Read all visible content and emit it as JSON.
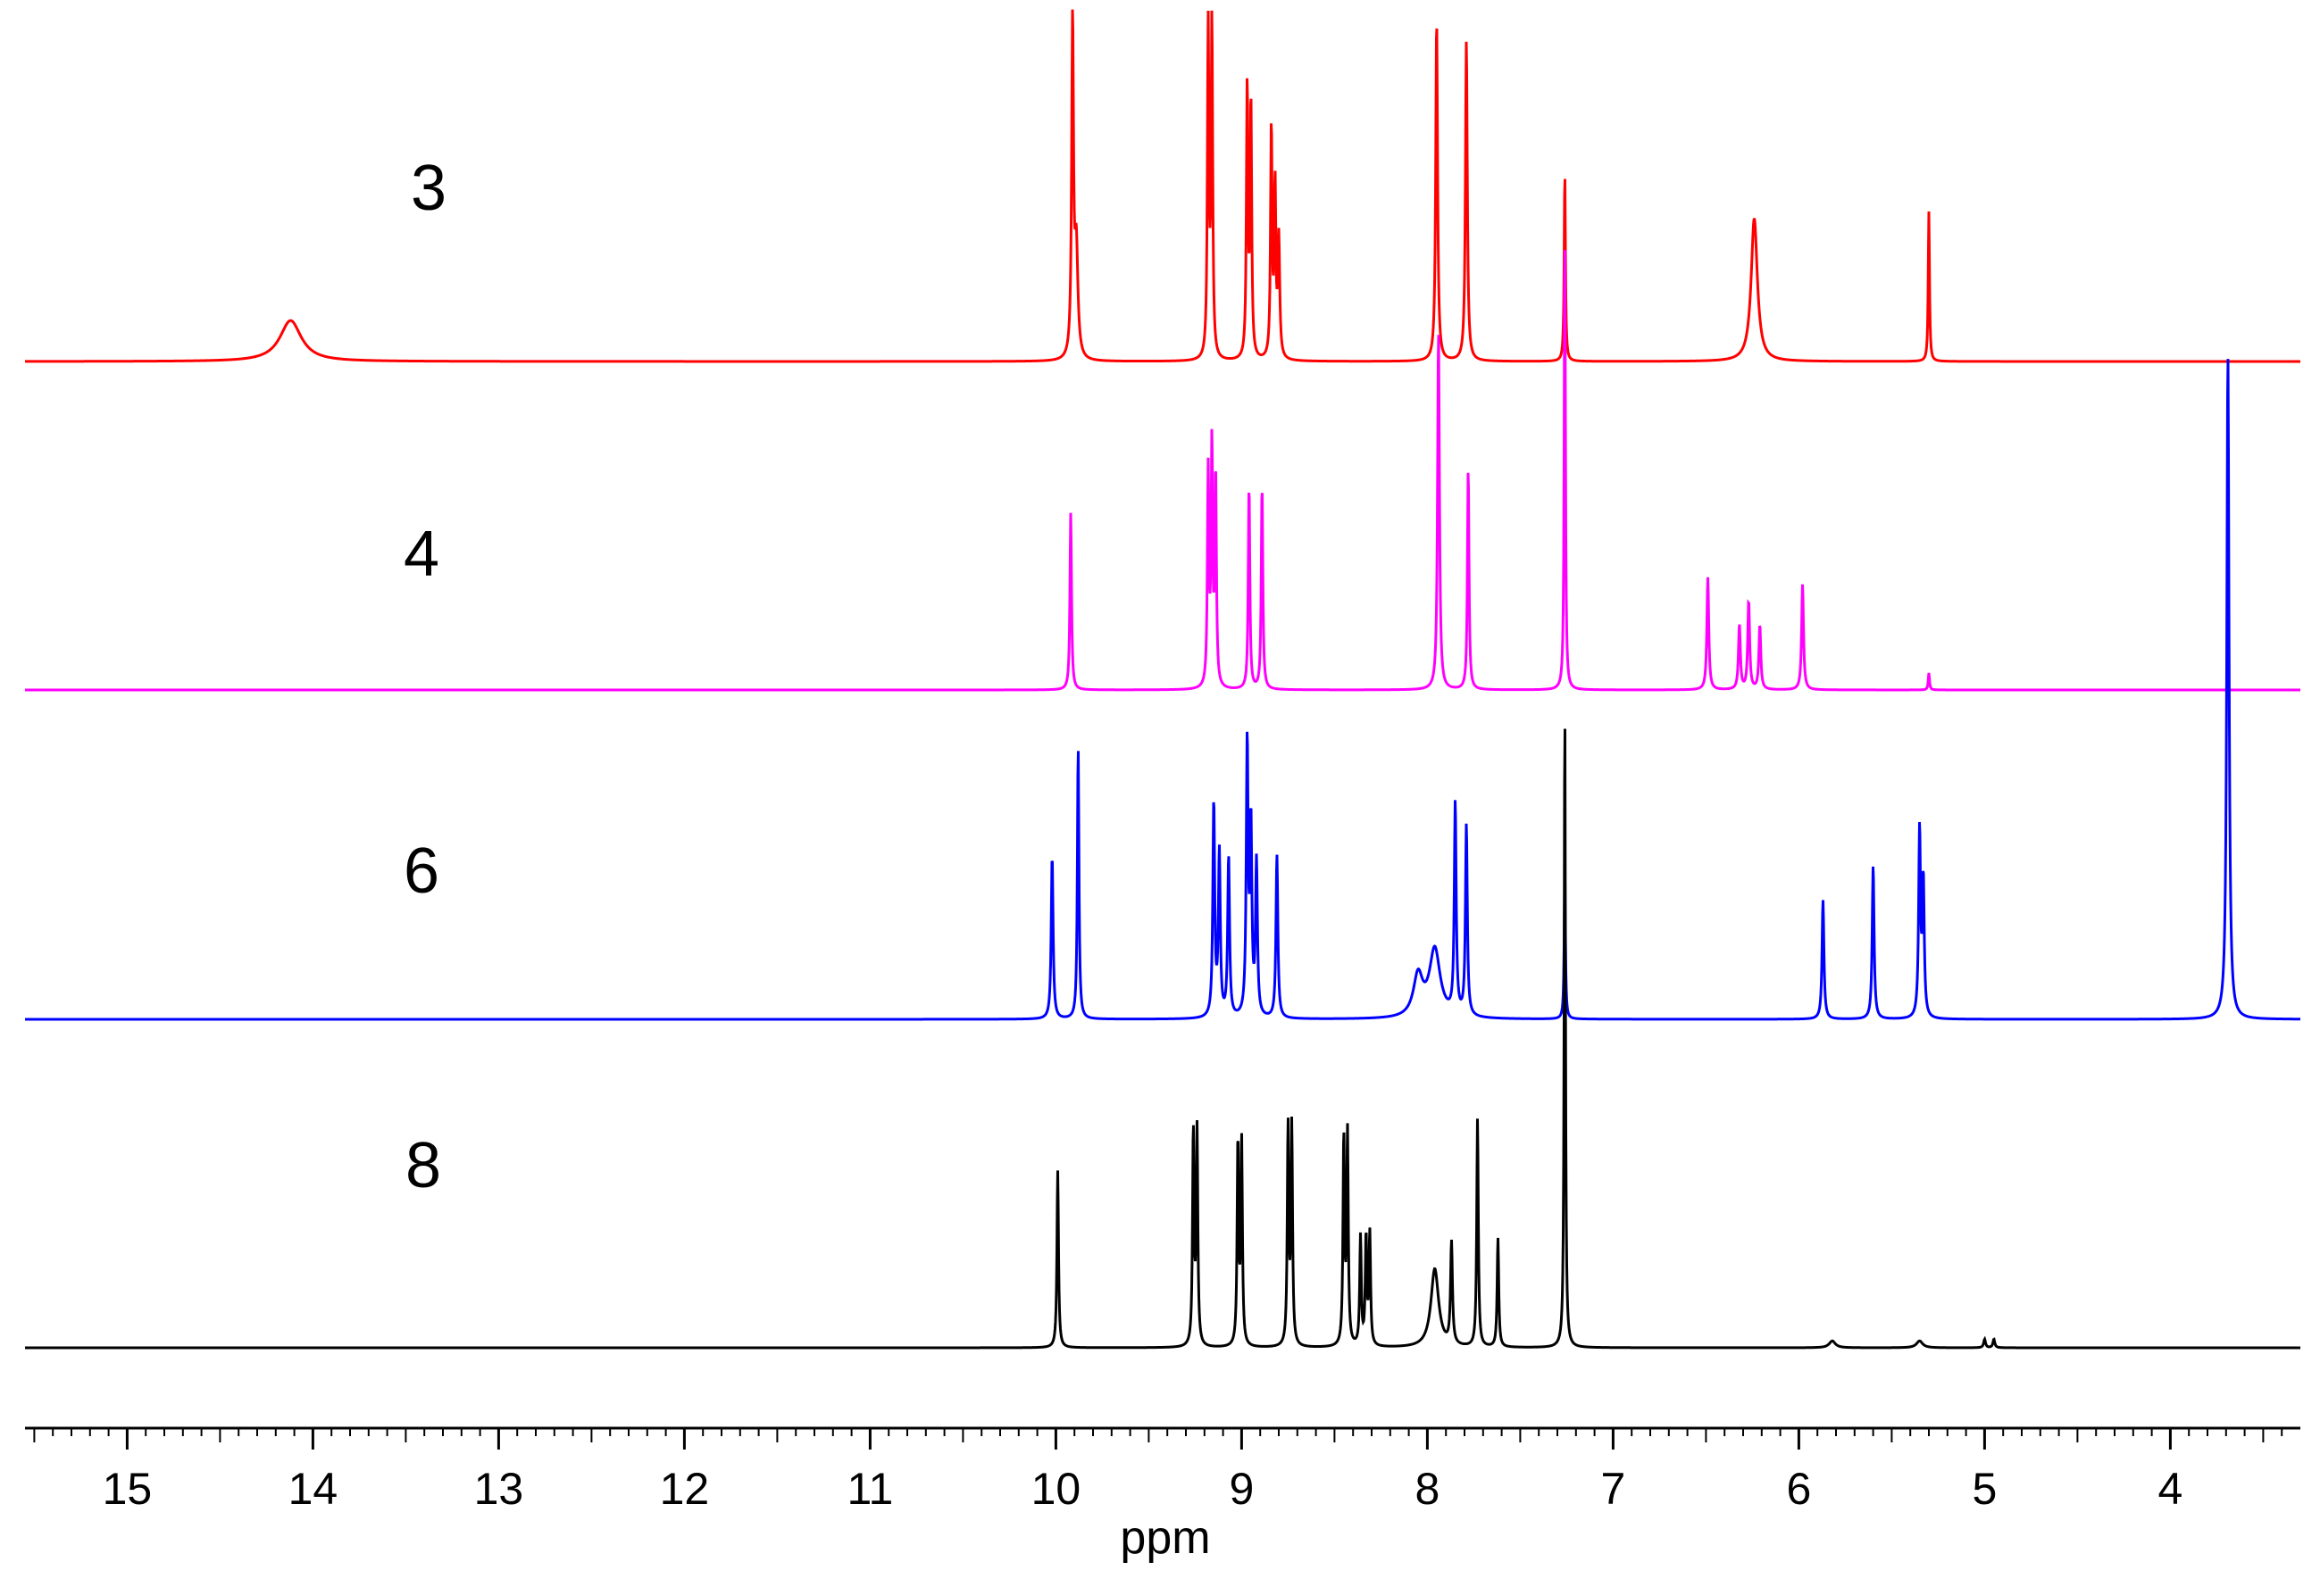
{
  "chart_data": {
    "type": "line",
    "title": "",
    "xlabel": "ppm",
    "ylabel": "",
    "xlim": [
      15.55,
      3.3
    ],
    "x_reversed": true,
    "grid": false,
    "xticks": [
      "15",
      "14",
      "13",
      "12",
      "11",
      "10",
      "9",
      "8",
      "7",
      "6",
      "5",
      "4"
    ],
    "tick_values": [
      15,
      14,
      13,
      12,
      11,
      10,
      9,
      8,
      7,
      6,
      5,
      4
    ],
    "series": [
      {
        "name": "3",
        "color": "#ff0000",
        "peaks": [
          {
            "ppm": 14.12,
            "height": 0.12,
            "width": 0.07
          },
          {
            "ppm": 9.91,
            "height": 0.98,
            "width": 0.006
          },
          {
            "ppm": 9.89,
            "height": 0.32,
            "width": 0.01
          },
          {
            "ppm": 9.18,
            "height": 0.97,
            "width": 0.005
          },
          {
            "ppm": 9.16,
            "height": 0.98,
            "width": 0.005
          },
          {
            "ppm": 8.97,
            "height": 0.8,
            "width": 0.005
          },
          {
            "ppm": 8.95,
            "height": 0.75,
            "width": 0.005
          },
          {
            "ppm": 8.84,
            "height": 0.68,
            "width": 0.005
          },
          {
            "ppm": 8.82,
            "height": 0.5,
            "width": 0.005
          },
          {
            "ppm": 8.8,
            "height": 0.35,
            "width": 0.006
          },
          {
            "ppm": 7.95,
            "height": 1.0,
            "width": 0.006
          },
          {
            "ppm": 7.79,
            "height": 0.94,
            "width": 0.006
          },
          {
            "ppm": 7.26,
            "height": 0.56,
            "width": 0.004
          },
          {
            "ppm": 6.24,
            "height": 0.42,
            "width": 0.02
          },
          {
            "ppm": 5.3,
            "height": 0.44,
            "width": 0.004
          }
        ]
      },
      {
        "name": "4",
        "color": "#ff00ff",
        "peaks": [
          {
            "ppm": 9.92,
            "height": 0.52,
            "width": 0.005
          },
          {
            "ppm": 9.18,
            "height": 0.63,
            "width": 0.005
          },
          {
            "ppm": 9.16,
            "height": 0.7,
            "width": 0.005
          },
          {
            "ppm": 9.14,
            "height": 0.62,
            "width": 0.005
          },
          {
            "ppm": 8.96,
            "height": 0.6,
            "width": 0.005
          },
          {
            "ppm": 8.89,
            "height": 0.6,
            "width": 0.005
          },
          {
            "ppm": 7.94,
            "height": 1.05,
            "width": 0.006
          },
          {
            "ppm": 7.78,
            "height": 0.65,
            "width": 0.005
          },
          {
            "ppm": 7.26,
            "height": 1.35,
            "width": 0.004
          },
          {
            "ppm": 6.49,
            "height": 0.33,
            "width": 0.006
          },
          {
            "ppm": 6.32,
            "height": 0.19,
            "width": 0.006
          },
          {
            "ppm": 6.27,
            "height": 0.26,
            "width": 0.006
          },
          {
            "ppm": 6.21,
            "height": 0.19,
            "width": 0.006
          },
          {
            "ppm": 5.98,
            "height": 0.31,
            "width": 0.006
          },
          {
            "ppm": 5.3,
            "height": 0.05,
            "width": 0.004
          }
        ]
      },
      {
        "name": "6",
        "color": "#0000ff",
        "peaks": [
          {
            "ppm": 10.02,
            "height": 0.48,
            "width": 0.006
          },
          {
            "ppm": 9.88,
            "height": 0.8,
            "width": 0.005
          },
          {
            "ppm": 9.15,
            "height": 0.63,
            "width": 0.006
          },
          {
            "ppm": 9.12,
            "height": 0.48,
            "width": 0.006
          },
          {
            "ppm": 9.07,
            "height": 0.47,
            "width": 0.006
          },
          {
            "ppm": 8.97,
            "height": 0.8,
            "width": 0.006
          },
          {
            "ppm": 8.95,
            "height": 0.55,
            "width": 0.006
          },
          {
            "ppm": 8.92,
            "height": 0.45,
            "width": 0.006
          },
          {
            "ppm": 8.81,
            "height": 0.48,
            "width": 0.006
          },
          {
            "ppm": 8.05,
            "height": 0.12,
            "width": 0.03
          },
          {
            "ppm": 7.96,
            "height": 0.2,
            "width": 0.035
          },
          {
            "ppm": 7.85,
            "height": 0.62,
            "width": 0.006
          },
          {
            "ppm": 7.79,
            "height": 0.56,
            "width": 0.006
          },
          {
            "ppm": 7.26,
            "height": 0.42,
            "width": 0.004
          },
          {
            "ppm": 5.87,
            "height": 0.35,
            "width": 0.006
          },
          {
            "ppm": 5.6,
            "height": 0.45,
            "width": 0.006
          },
          {
            "ppm": 5.35,
            "height": 0.55,
            "width": 0.006
          },
          {
            "ppm": 5.33,
            "height": 0.4,
            "width": 0.006
          },
          {
            "ppm": 3.69,
            "height": 1.95,
            "width": 0.007
          }
        ]
      },
      {
        "name": "8",
        "color": "#000000",
        "peaks": [
          {
            "ppm": 9.99,
            "height": 0.52,
            "width": 0.005
          },
          {
            "ppm": 9.26,
            "height": 0.63,
            "width": 0.005
          },
          {
            "ppm": 9.24,
            "height": 0.63,
            "width": 0.005
          },
          {
            "ppm": 9.02,
            "height": 0.6,
            "width": 0.005
          },
          {
            "ppm": 9.0,
            "height": 0.6,
            "width": 0.005
          },
          {
            "ppm": 8.75,
            "height": 0.64,
            "width": 0.005
          },
          {
            "ppm": 8.73,
            "height": 0.64,
            "width": 0.005
          },
          {
            "ppm": 8.45,
            "height": 0.61,
            "width": 0.005
          },
          {
            "ppm": 8.43,
            "height": 0.62,
            "width": 0.005
          },
          {
            "ppm": 8.36,
            "height": 0.32,
            "width": 0.005
          },
          {
            "ppm": 8.33,
            "height": 0.32,
            "width": 0.005
          },
          {
            "ppm": 8.31,
            "height": 0.33,
            "width": 0.005
          },
          {
            "ppm": 7.96,
            "height": 0.23,
            "width": 0.025
          },
          {
            "ppm": 7.87,
            "height": 0.3,
            "width": 0.006
          },
          {
            "ppm": 7.73,
            "height": 0.67,
            "width": 0.005
          },
          {
            "ppm": 7.62,
            "height": 0.32,
            "width": 0.005
          },
          {
            "ppm": 7.26,
            "height": 1.9,
            "width": 0.004
          },
          {
            "ppm": 5.82,
            "height": 0.02,
            "width": 0.02
          },
          {
            "ppm": 5.35,
            "height": 0.02,
            "width": 0.02
          },
          {
            "ppm": 5.0,
            "height": 0.025,
            "width": 0.006
          },
          {
            "ppm": 4.95,
            "height": 0.025,
            "width": 0.006
          }
        ]
      }
    ]
  }
}
